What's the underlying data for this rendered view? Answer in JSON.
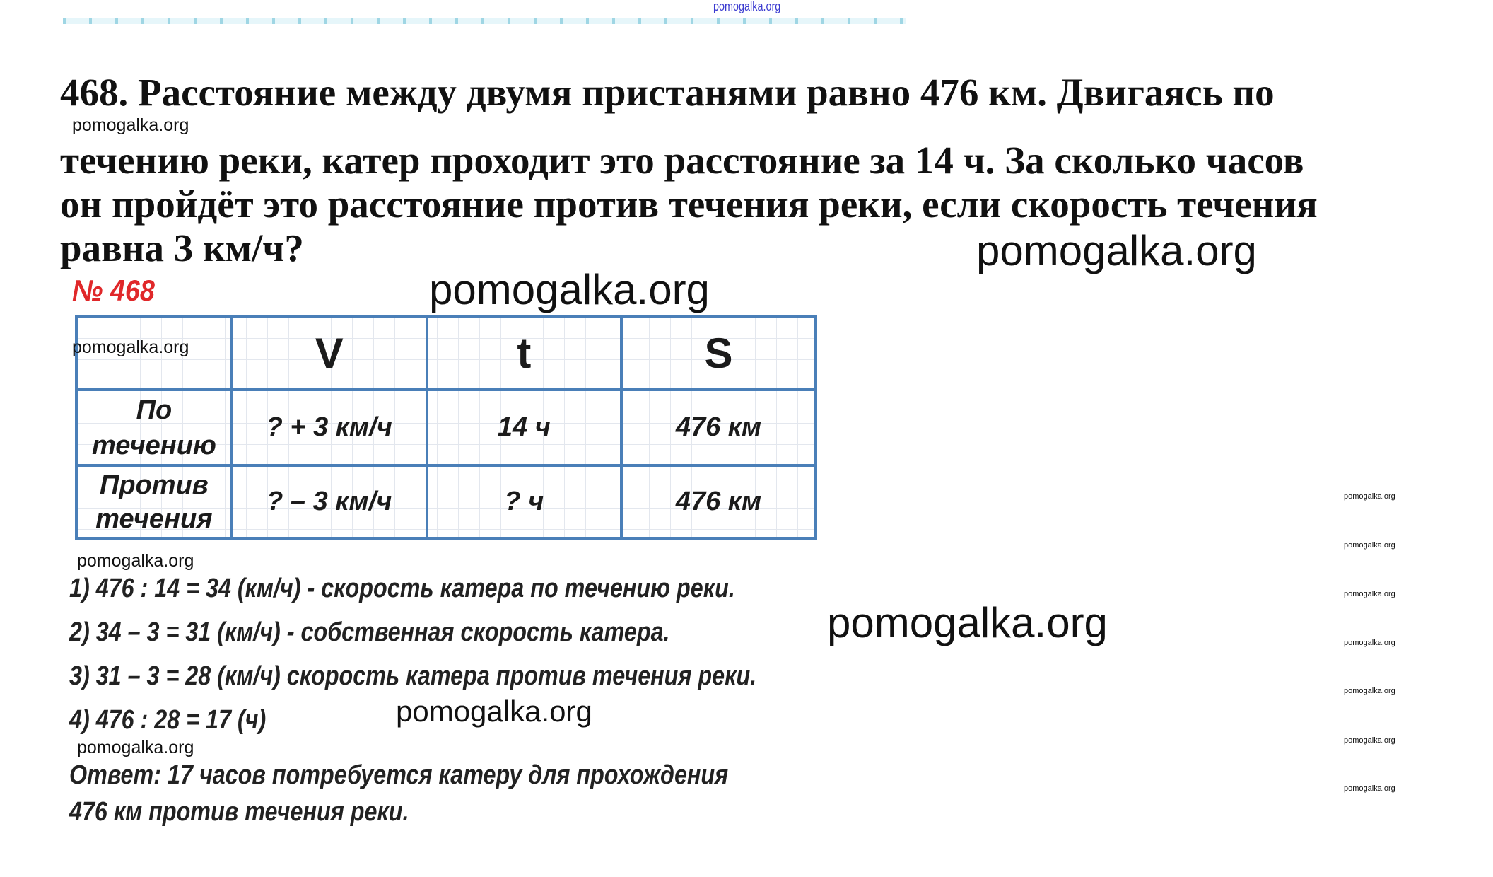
{
  "watermark": "pomogalka.org",
  "problem": {
    "lines": [
      "468. Расстояние между двумя пристанями равно 476 км. Двигаясь по",
      "течению реки, катер проходит это расстояние за 14 ч. За сколько часов",
      "он пройдёт это расстояние против течения реки, если скорость течения",
      "равна 3 км/ч?"
    ]
  },
  "solution_number": "№ 468",
  "table": {
    "headers": [
      "",
      "V",
      "t",
      "S"
    ],
    "rows": [
      [
        "По течению",
        "? + 3 км/ч",
        "14 ч",
        "476 км"
      ],
      [
        "Против течения",
        "? – 3 км/ч",
        "? ч",
        "476 км"
      ]
    ]
  },
  "steps": [
    "1) 476 : 14 = 34 (км/ч) - скорость катера по течению реки.",
    "2) 34 – 3 = 31 (км/ч) - собственная скорость катера.",
    "3) 31 – 3 = 28 (км/ч) скорость катера против течения реки.",
    "4) 476 : 28 = 17 (ч)"
  ],
  "answer": [
    "Ответ: 17 часов потребуется катеру для прохождения",
    "476 км против течения реки."
  ],
  "colors": {
    "table_border": "#4a7fb8",
    "number_red": "#e0282a",
    "top_watermark": "#3a3ad0"
  }
}
